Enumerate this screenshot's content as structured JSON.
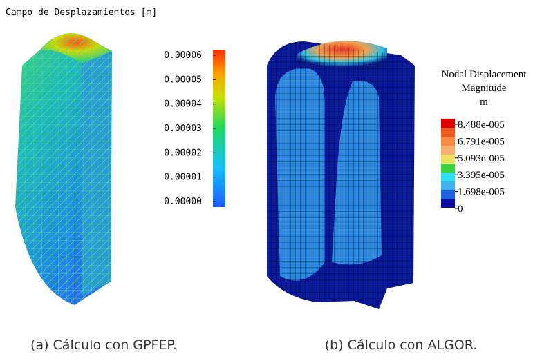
{
  "panels": [
    {
      "title": "Campo de Desplazamientos [m]",
      "colorbar": {
        "labels": [
          "0.00006",
          "0.00005",
          "0.00004",
          "0.00003",
          "0.00002",
          "0.00001",
          "0.00000"
        ]
      },
      "caption": "(a) Cálculo con GPFEP."
    },
    {
      "legend_title": [
        "Nodal Displacement",
        "Magnitude",
        "m"
      ],
      "colorbar": {
        "labels": [
          "8.488e-005",
          "6.791e-005",
          "5.093e-005",
          "3.395e-005",
          "1.698e-005",
          "0"
        ]
      },
      "caption": "(b) Cálculo con ALGOR."
    }
  ]
}
